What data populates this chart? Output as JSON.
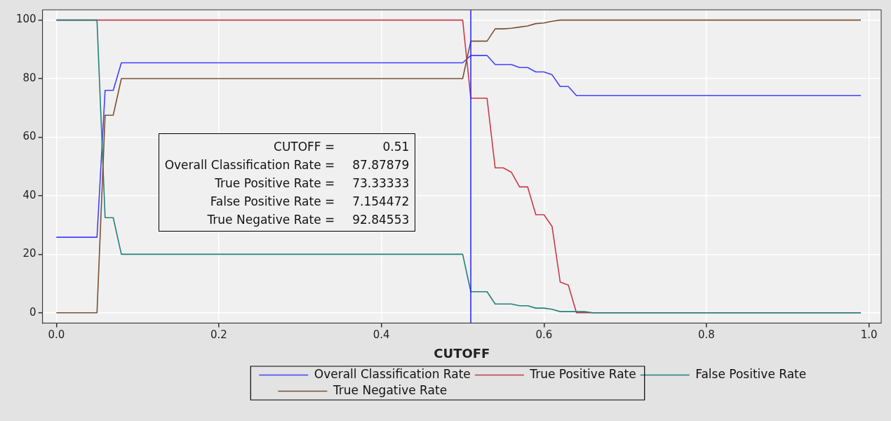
{
  "chart_data": {
    "type": "line",
    "xlabel": "CUTOFF",
    "x": [
      0,
      0.05,
      0.06,
      0.07,
      0.08,
      0.5,
      0.51,
      0.53,
      0.54,
      0.55,
      0.56,
      0.57,
      0.58,
      0.59,
      0.6,
      0.61,
      0.62,
      0.63,
      0.64,
      0.65,
      0.66,
      0.99
    ],
    "series": [
      {
        "name": "Overall Classification Rate",
        "color": "#4040ff",
        "values": [
          25.8,
          25.8,
          76,
          76,
          85.4,
          85.4,
          87.9,
          87.9,
          84.8,
          84.8,
          84.8,
          83.8,
          83.8,
          82.3,
          82.3,
          81.3,
          77.3,
          77.3,
          74.2,
          74.2,
          74.2,
          74.2
        ]
      },
      {
        "name": "True Positive Rate",
        "color": "#c83a46",
        "values": [
          100,
          100,
          100,
          100,
          100,
          100,
          73.3,
          73.3,
          49.5,
          49.5,
          48,
          43,
          43,
          33.5,
          33.5,
          29.5,
          10.5,
          9.5,
          0,
          0,
          0,
          0
        ]
      },
      {
        "name": "False Positive Rate",
        "color": "#22807a",
        "values": [
          100,
          100,
          32.5,
          32.5,
          20,
          20,
          7.2,
          7.2,
          3,
          3,
          3,
          2.4,
          2.4,
          1.6,
          1.6,
          1.2,
          0.4,
          0.4,
          0.4,
          0.4,
          0,
          0
        ]
      },
      {
        "name": "True Negative Rate",
        "color": "#7a5030",
        "values": [
          0,
          0,
          67.5,
          67.5,
          80,
          80,
          92.8,
          92.8,
          97,
          97,
          97.2,
          97.6,
          98,
          98.8,
          99,
          99.6,
          100,
          100,
          100,
          100,
          100,
          100
        ]
      }
    ],
    "xlim": [
      -0.017,
      1.015
    ],
    "ylim": [
      -3.5,
      103.5
    ],
    "xticks": [
      {
        "value": 0,
        "label": "0.0"
      },
      {
        "value": 0.2,
        "label": "0.2"
      },
      {
        "value": 0.4,
        "label": "0.4"
      },
      {
        "value": 0.6,
        "label": "0.6"
      },
      {
        "value": 0.8,
        "label": "0.8"
      },
      {
        "value": 1,
        "label": "1.0"
      }
    ],
    "yticks": [
      0,
      20,
      40,
      60,
      80,
      100
    ],
    "ref_lines": [
      {
        "axis": "x",
        "value": 0.51,
        "color": "#2020ff"
      }
    ],
    "annotations": [
      "CUTOFF = 0.51",
      "Overall Classification Rate = 87.87879",
      "True Positive Rate = 73.33333",
      "False Positive Rate = 7.154472",
      "True Negative Rate = 92.84553"
    ],
    "grid": true,
    "legend": "bottom",
    "marker": "none",
    "line_style": "solid"
  }
}
